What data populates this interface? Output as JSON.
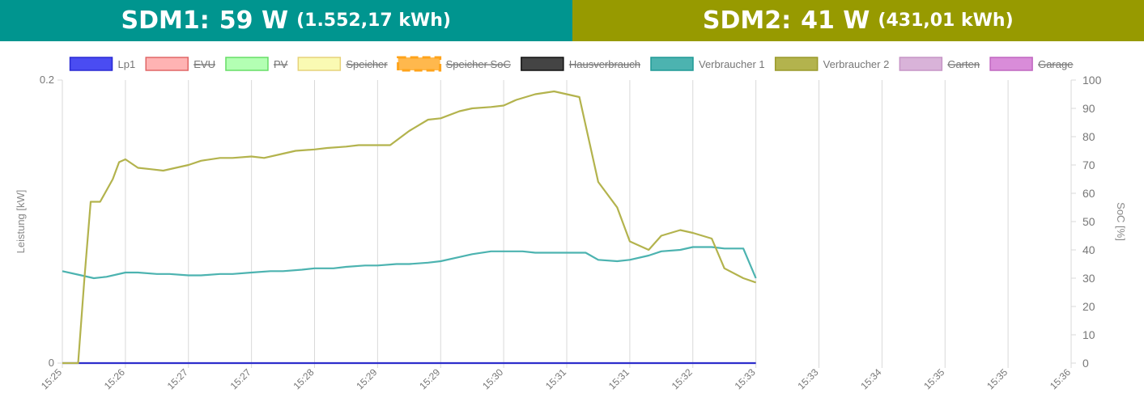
{
  "header": {
    "sdm1": {
      "name": "SDM1",
      "power": "59 W",
      "energy": "(1.552,17 kWh)",
      "color": "#00958f"
    },
    "sdm2": {
      "name": "SDM2",
      "power": "41 W",
      "energy": "(431,01 kWh)",
      "color": "#979a00"
    }
  },
  "chart_data": {
    "type": "line",
    "ylabel": "Leistung [kW]",
    "y2label": "SoC [%]",
    "ylim": [
      0,
      0.2
    ],
    "y2lim": [
      0,
      100
    ],
    "yticks": [
      "0",
      "0.2"
    ],
    "y2ticks": [
      "0",
      "10",
      "20",
      "30",
      "40",
      "50",
      "60",
      "70",
      "80",
      "90",
      "100"
    ],
    "x_ticks": [
      "15:25",
      "15:26",
      "15:27",
      "15:27",
      "15:28",
      "15:29",
      "15:29",
      "15:30",
      "15:31",
      "15:31",
      "15:32",
      "15:33",
      "15:33",
      "15:34",
      "15:35",
      "15:35",
      "15:36"
    ],
    "grid": true,
    "legend_position": "top",
    "legend": [
      {
        "name": "Lp1",
        "fill": "#4a4cf2",
        "stroke": "#2a2ad4",
        "hidden": false,
        "dashed": false
      },
      {
        "name": "EVU",
        "fill": "#ffb3b3",
        "stroke": "#e06666",
        "hidden": true,
        "dashed": false
      },
      {
        "name": "PV",
        "fill": "#b3ffb3",
        "stroke": "#66dd66",
        "hidden": true,
        "dashed": false
      },
      {
        "name": "Speicher",
        "fill": "#fafab3",
        "stroke": "#e6d27a",
        "hidden": true,
        "dashed": false
      },
      {
        "name": "Speicher SoC",
        "fill": "#ffb84d",
        "stroke": "#ffa31a",
        "hidden": true,
        "dashed": true
      },
      {
        "name": "Hausverbrauch",
        "fill": "#444444",
        "stroke": "#111111",
        "hidden": true,
        "dashed": false
      },
      {
        "name": "Verbraucher 1",
        "fill": "#4cb3b0",
        "stroke": "#1e9a96",
        "hidden": false,
        "dashed": false
      },
      {
        "name": "Verbraucher 2",
        "fill": "#b3b34d",
        "stroke": "#9a9a2a",
        "hidden": false,
        "dashed": false
      },
      {
        "name": "Garten",
        "fill": "#d9b3d9",
        "stroke": "#c694c6",
        "hidden": true,
        "dashed": false
      },
      {
        "name": "Garage",
        "fill": "#d98cd9",
        "stroke": "#c066c0",
        "hidden": true,
        "dashed": false
      }
    ],
    "series": [
      {
        "name": "Lp1",
        "axis": "left",
        "color": "#2e2ecc",
        "x": [
          0,
          11
        ],
        "values": [
          0,
          0
        ]
      },
      {
        "name": "Verbraucher 1",
        "axis": "left",
        "color": "#4cb3b0",
        "x": [
          0,
          0.3,
          0.5,
          0.7,
          1.0,
          1.2,
          1.5,
          1.7,
          2.0,
          2.2,
          2.5,
          2.7,
          3.0,
          3.3,
          3.5,
          3.8,
          4.0,
          4.3,
          4.5,
          4.8,
          5.0,
          5.3,
          5.5,
          5.8,
          6.0,
          6.3,
          6.5,
          6.8,
          7.0,
          7.3,
          7.5,
          7.8,
          8.0,
          8.3,
          8.5,
          8.8,
          9.0,
          9.3,
          9.5,
          9.8,
          10.0,
          10.3,
          10.5,
          10.8,
          11.0
        ],
        "values": [
          0.065,
          0.062,
          0.06,
          0.061,
          0.064,
          0.064,
          0.063,
          0.063,
          0.062,
          0.062,
          0.063,
          0.063,
          0.064,
          0.065,
          0.065,
          0.066,
          0.067,
          0.067,
          0.068,
          0.069,
          0.069,
          0.07,
          0.07,
          0.071,
          0.072,
          0.075,
          0.077,
          0.079,
          0.079,
          0.079,
          0.078,
          0.078,
          0.078,
          0.078,
          0.073,
          0.072,
          0.073,
          0.076,
          0.079,
          0.08,
          0.082,
          0.082,
          0.081,
          0.081,
          0.06
        ]
      },
      {
        "name": "Verbraucher 2",
        "axis": "left",
        "color": "#b3b34d",
        "x": [
          0,
          0.25,
          0.35,
          0.45,
          0.6,
          0.8,
          0.9,
          1.0,
          1.2,
          1.4,
          1.6,
          1.8,
          2.0,
          2.2,
          2.5,
          2.7,
          3.0,
          3.2,
          3.5,
          3.7,
          4.0,
          4.2,
          4.5,
          4.7,
          5.0,
          5.2,
          5.5,
          5.8,
          6.0,
          6.3,
          6.5,
          6.8,
          7.0,
          7.2,
          7.5,
          7.8,
          8.0,
          8.2,
          8.5,
          8.8,
          9.0,
          9.3,
          9.5,
          9.8,
          10.0,
          10.3,
          10.5,
          10.8,
          11.0
        ],
        "values": [
          0,
          0,
          0.06,
          0.114,
          0.114,
          0.13,
          0.142,
          0.144,
          0.138,
          0.137,
          0.136,
          0.138,
          0.14,
          0.143,
          0.145,
          0.145,
          0.146,
          0.145,
          0.148,
          0.15,
          0.151,
          0.152,
          0.153,
          0.154,
          0.154,
          0.154,
          0.164,
          0.172,
          0.173,
          0.178,
          0.18,
          0.181,
          0.182,
          0.186,
          0.19,
          0.192,
          0.19,
          0.188,
          0.128,
          0.11,
          0.086,
          0.08,
          0.09,
          0.094,
          0.092,
          0.088,
          0.067,
          0.06,
          0.057
        ]
      }
    ]
  }
}
